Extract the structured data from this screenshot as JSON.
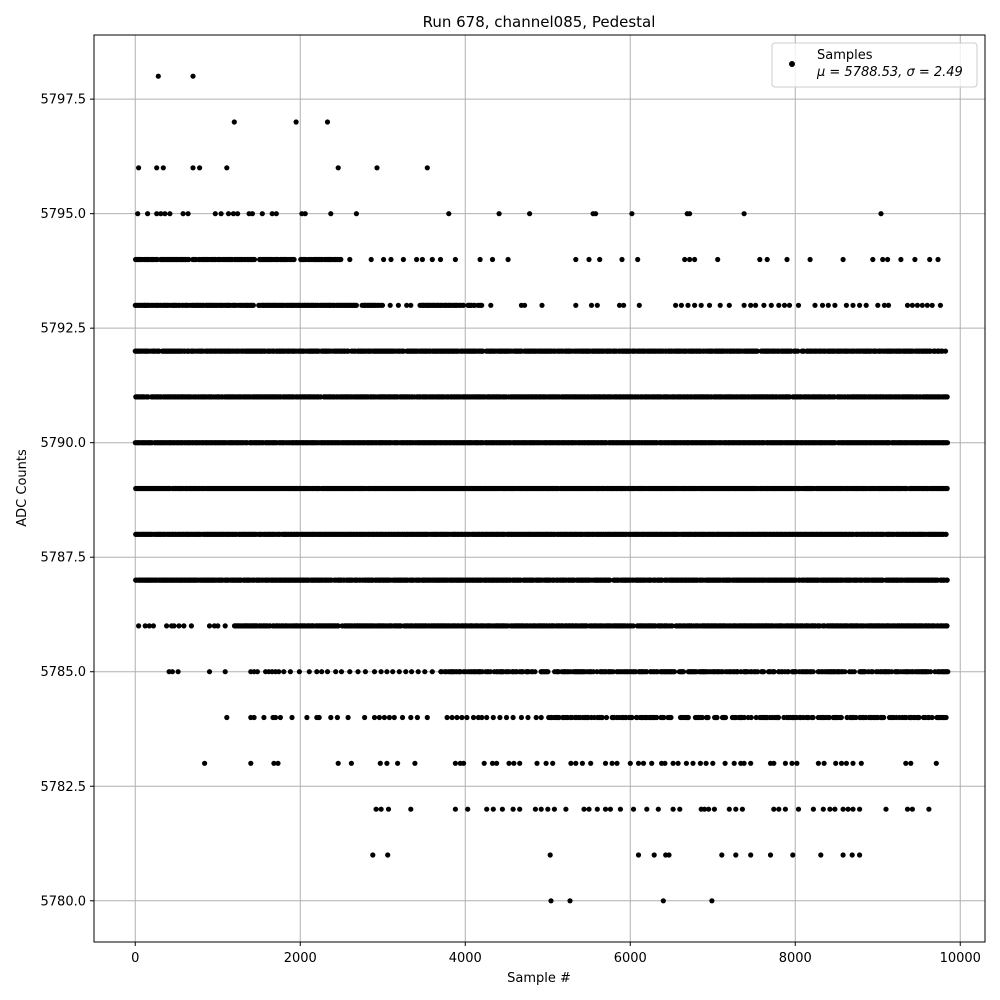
{
  "chart_data": {
    "type": "scatter",
    "title": "Run 678, channel085, Pedestal",
    "xlabel": "Sample #",
    "ylabel": "ADC Counts",
    "xlim": [
      -500,
      10300
    ],
    "ylim": [
      5779.1,
      5798.9
    ],
    "xticks": [
      0,
      2000,
      4000,
      6000,
      8000,
      10000
    ],
    "xtick_labels": [
      "0",
      "2000",
      "4000",
      "6000",
      "8000",
      "10000"
    ],
    "yticks": [
      5780.0,
      5782.5,
      5785.0,
      5787.5,
      5790.0,
      5792.5,
      5795.0,
      5797.5
    ],
    "ytick_labels": [
      "5780.0",
      "5782.5",
      "5785.0",
      "5787.5",
      "5790.0",
      "5792.5",
      "5795.0",
      "5797.5"
    ],
    "grid": true,
    "legend_position": "top-right",
    "series": [
      {
        "name": "Samples",
        "color": "#000000",
        "marker": "circle",
        "n_samples": 9850,
        "levels": [
          {
            "y": 5798,
            "x": [
              280,
              700
            ]
          },
          {
            "y": 5797,
            "x": [
              1200,
              1950,
              2330
            ]
          },
          {
            "y": 5796,
            "x": [
              40,
              260,
              340,
              700,
              780,
              1110,
              2460,
              2930,
              3540
            ]
          },
          {
            "y": 5795,
            "x": [
              30,
              150,
              260,
              310,
              360,
              420,
              580,
              640,
              970,
              1040,
              1130,
              1190,
              1240,
              1380,
              1420,
              1540,
              1660,
              1710,
              2020,
              2060,
              2370,
              2680,
              3800,
              4410,
              4780,
              5550,
              5580,
              6020,
              6690,
              6720,
              7380,
              9040
            ]
          },
          {
            "y": 5794,
            "x_ranges": [
              [
                0,
                1450
              ],
              [
                1490,
                1930
              ],
              [
                2000,
                2500
              ]
            ],
            "x": [
              2600,
              2860,
              3010,
              3100,
              3250,
              3410,
              3480,
              3600,
              3700,
              3880,
              4180,
              4330,
              4520,
              5340,
              5500,
              5630,
              5900,
              6090,
              6660,
              6720,
              6780,
              7060,
              7570,
              7660,
              7900,
              8180,
              8580,
              8940,
              9060,
              9120,
              9280,
              9450,
              9630,
              9730
            ]
          },
          {
            "y": 5793,
            "x_ranges": [
              [
                0,
                1450
              ],
              [
                1490,
                2700
              ],
              [
                2750,
                3000
              ],
              [
                3450,
                4200
              ]
            ],
            "x": [
              3090,
              3190,
              3290,
              3340,
              4310,
              4680,
              4720,
              4930,
              5340,
              5530,
              5600,
              5870,
              5920,
              6110,
              6550,
              6620,
              6700,
              6780,
              6860,
              6960,
              7090,
              7200,
              7380,
              7460,
              7520,
              7620,
              7710,
              7800,
              7870,
              7930,
              8040,
              8240,
              8330,
              8400,
              8480,
              8620,
              8700,
              8780,
              8860,
              9000,
              9080,
              9130,
              9360,
              9420,
              9480,
              9540,
              9600,
              9660,
              9760
            ]
          },
          {
            "y": 5792,
            "x_ranges": [
              [
                0,
                9820
              ]
            ],
            "density": 0.82
          },
          {
            "y": 5791,
            "x_ranges": [
              [
                0,
                9850
              ]
            ],
            "density": 0.9
          },
          {
            "y": 5790,
            "x_ranges": [
              [
                0,
                9850
              ]
            ],
            "density": 0.97
          },
          {
            "y": 5789,
            "x_ranges": [
              [
                0,
                9850
              ]
            ],
            "density": 0.97
          },
          {
            "y": 5788,
            "x_ranges": [
              [
                0,
                9850
              ]
            ],
            "density": 0.97
          },
          {
            "y": 5787,
            "x_ranges": [
              [
                0,
                9850
              ]
            ],
            "density": 0.9
          },
          {
            "y": 5786,
            "x_ranges": [
              [
                1200,
                9850
              ]
            ],
            "density": 0.85,
            "x": [
              40,
              120,
              170,
              220,
              380,
              440,
              470,
              530,
              590,
              680,
              900,
              960,
              1000,
              1090
            ]
          },
          {
            "y": 5785,
            "x_ranges": [
              [
                3700,
                9850
              ]
            ],
            "density": 0.6,
            "x": [
              410,
              450,
              520,
              900,
              1090,
              1400,
              1440,
              1480,
              1580,
              1620,
              1660,
              1700,
              1740,
              1800,
              1880,
              1990,
              2110,
              2200,
              2260,
              2330,
              2430,
              2500,
              2600,
              2700,
              2790,
              2900,
              2980,
              3050,
              3120,
              3200,
              3280,
              3350,
              3430,
              3510,
              3600
            ]
          },
          {
            "y": 5784,
            "x_ranges": [
              [
                5000,
                9850
              ]
            ],
            "density": 0.45,
            "x": [
              1110,
              1400,
              1440,
              1560,
              1670,
              1700,
              1760,
              1900,
              2080,
              2200,
              2230,
              2370,
              2450,
              2580,
              2780,
              2900,
              2960,
              3020,
              3080,
              3140,
              3240,
              3340,
              3420,
              3540,
              3780,
              3840,
              3900,
              3960,
              4020,
              4100,
              4160,
              4200,
              4260,
              4340,
              4420,
              4500,
              4580,
              4680,
              4760,
              4860,
              4920
            ]
          },
          {
            "y": 5783,
            "x": [
              840,
              1400,
              1680,
              1730,
              2460,
              2620,
              2970,
              3050,
              3180,
              3390,
              3880,
              3940,
              3980,
              4230,
              4330,
              4380,
              4530,
              4590,
              4660,
              4870,
              4980,
              5060,
              5280,
              5340,
              5420,
              5520,
              5700,
              5780,
              5840,
              6000,
              6100,
              6160,
              6260,
              6380,
              6420,
              6520,
              6580,
              6680,
              6760,
              6850,
              6920,
              7000,
              7150,
              7260,
              7340,
              7380,
              7460,
              7700,
              7740,
              7880,
              7960,
              8020,
              8280,
              8350,
              8490,
              8560,
              8620,
              8700,
              8800,
              9340,
              9400,
              9710
            ]
          },
          {
            "y": 5782,
            "x": [
              2920,
              2980,
              3070,
              3340,
              3880,
              4030,
              4260,
              4340,
              4450,
              4580,
              4660,
              4850,
              4920,
              5000,
              5080,
              5220,
              5440,
              5500,
              5600,
              5700,
              5760,
              5880,
              6040,
              6200,
              6340,
              6520,
              6600,
              6860,
              6900,
              6950,
              7020,
              7200,
              7280,
              7360,
              7740,
              7800,
              7880,
              8040,
              8220,
              8340,
              8420,
              8480,
              8580,
              8640,
              8700,
              8780,
              9100,
              9360,
              9420,
              9620
            ]
          },
          {
            "y": 5781,
            "x": [
              2880,
              3060,
              5030,
              6100,
              6290,
              6430,
              6470,
              7110,
              7280,
              7460,
              7700,
              7970,
              8310,
              8580,
              8690,
              8780
            ]
          },
          {
            "y": 5780,
            "x": [
              5040,
              5270,
              6400,
              6990
            ]
          }
        ]
      }
    ],
    "legend": {
      "label": "Samples",
      "stats": "μ = 5788.53, σ = 2.49"
    }
  }
}
